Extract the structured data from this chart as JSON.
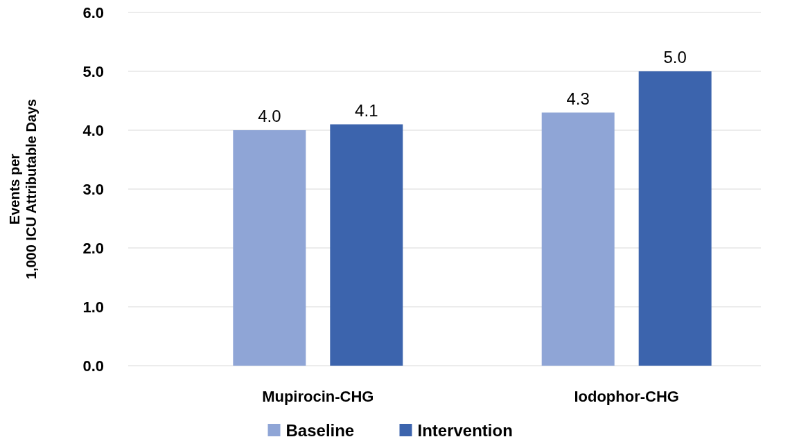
{
  "chart_data": {
    "type": "bar",
    "ylabel": "Events per\n1,000 ICU Attributable Days",
    "categories": [
      "Mupirocin-CHG",
      "Iodophor-CHG"
    ],
    "series": [
      {
        "name": "Baseline",
        "color": "#8fa5d6",
        "values": [
          4.0,
          4.3
        ],
        "value_labels": [
          "4.0",
          "4.3"
        ]
      },
      {
        "name": "Intervention",
        "color": "#3c64ad",
        "values": [
          4.1,
          5.0
        ],
        "value_labels": [
          "4.1",
          "5.0"
        ]
      }
    ],
    "ylim": [
      0,
      6
    ],
    "yticks": [
      {
        "value": 0,
        "label": "0.0"
      },
      {
        "value": 1,
        "label": "1.0"
      },
      {
        "value": 2,
        "label": "2.0"
      },
      {
        "value": 3,
        "label": "3.0"
      },
      {
        "value": 4,
        "label": "4.0"
      },
      {
        "value": 5,
        "label": "5.0"
      },
      {
        "value": 6,
        "label": "6.0"
      }
    ],
    "grid": "y",
    "legend": "bottom"
  }
}
